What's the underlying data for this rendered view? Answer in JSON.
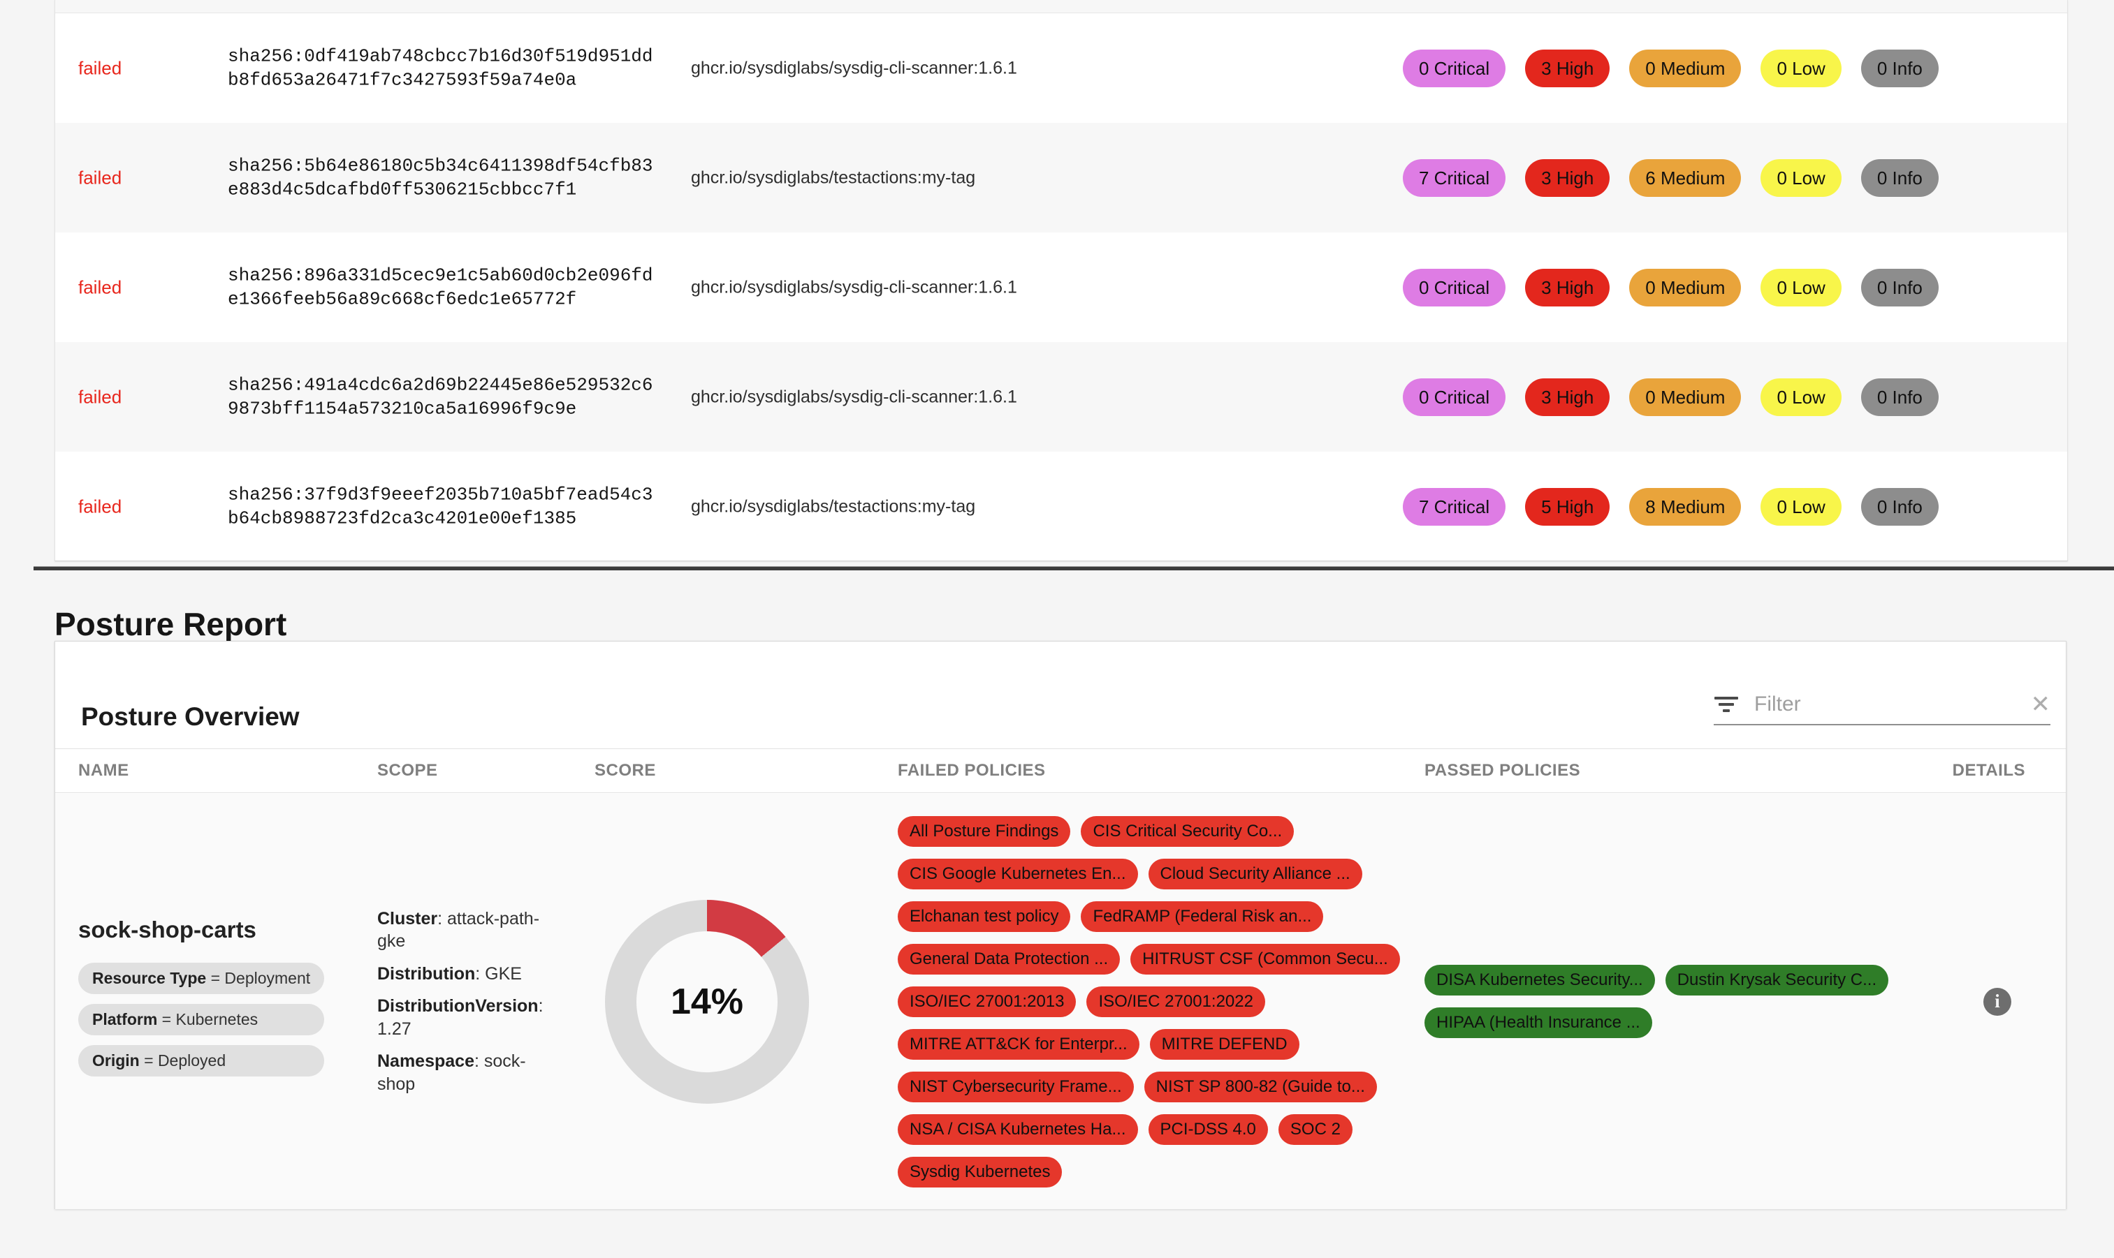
{
  "colors": {
    "critical": "#de7ce4",
    "high": "#e3271d",
    "medium": "#e9a43b",
    "low": "#f8f54a",
    "info": "#8d8d8d",
    "failed_text": "#e8261c",
    "failed_policy": "#e5372b",
    "passed_policy": "#2f7d28",
    "donut_red": "#d23b43",
    "donut_gray": "#dadada"
  },
  "scan_table": {
    "rows": [
      {
        "status": "failed",
        "digest": "sha256:0df419ab748cbcc7b16d30f519d951ddb8fd653a26471f7c3427593f59a74e0a",
        "image": "ghcr.io/sysdiglabs/sysdig-cli-scanner:1.6.1",
        "badges": [
          {
            "text": "0 Critical",
            "severity": "critical"
          },
          {
            "text": "3 High",
            "severity": "high"
          },
          {
            "text": "0 Medium",
            "severity": "medium"
          },
          {
            "text": "0 Low",
            "severity": "low"
          },
          {
            "text": "0 Info",
            "severity": "info"
          }
        ]
      },
      {
        "status": "failed",
        "digest": "sha256:5b64e86180c5b34c6411398df54cfb83e883d4c5dcafbd0ff5306215cbbcc7f1",
        "image": "ghcr.io/sysdiglabs/testactions:my-tag",
        "badges": [
          {
            "text": "7 Critical",
            "severity": "critical"
          },
          {
            "text": "3 High",
            "severity": "high"
          },
          {
            "text": "6 Medium",
            "severity": "medium"
          },
          {
            "text": "0 Low",
            "severity": "low"
          },
          {
            "text": "0 Info",
            "severity": "info"
          }
        ]
      },
      {
        "status": "failed",
        "digest": "sha256:896a331d5cec9e1c5ab60d0cb2e096fde1366feeb56a89c668cf6edc1e65772f",
        "image": "ghcr.io/sysdiglabs/sysdig-cli-scanner:1.6.1",
        "badges": [
          {
            "text": "0 Critical",
            "severity": "critical"
          },
          {
            "text": "3 High",
            "severity": "high"
          },
          {
            "text": "0 Medium",
            "severity": "medium"
          },
          {
            "text": "0 Low",
            "severity": "low"
          },
          {
            "text": "0 Info",
            "severity": "info"
          }
        ]
      },
      {
        "status": "failed",
        "digest": "sha256:491a4cdc6a2d69b22445e86e529532c69873bff1154a573210ca5a16996f9c9e",
        "image": "ghcr.io/sysdiglabs/sysdig-cli-scanner:1.6.1",
        "badges": [
          {
            "text": "0 Critical",
            "severity": "critical"
          },
          {
            "text": "3 High",
            "severity": "high"
          },
          {
            "text": "0 Medium",
            "severity": "medium"
          },
          {
            "text": "0 Low",
            "severity": "low"
          },
          {
            "text": "0 Info",
            "severity": "info"
          }
        ]
      },
      {
        "status": "failed",
        "digest": "sha256:37f9d3f9eeef2035b710a5bf7ead54c3b64cb8988723fd2ca3c4201e00ef1385",
        "image": "ghcr.io/sysdiglabs/testactions:my-tag",
        "badges": [
          {
            "text": "7 Critical",
            "severity": "critical"
          },
          {
            "text": "5 High",
            "severity": "high"
          },
          {
            "text": "8 Medium",
            "severity": "medium"
          },
          {
            "text": "0 Low",
            "severity": "low"
          },
          {
            "text": "0 Info",
            "severity": "info"
          }
        ]
      }
    ]
  },
  "posture": {
    "section_title": "Posture Report",
    "card_title": "Posture Overview",
    "filter": {
      "placeholder": "Filter",
      "value": ""
    },
    "columns": [
      "NAME",
      "SCOPE",
      "SCORE",
      "FAILED POLICIES",
      "PASSED POLICIES",
      "DETAILS"
    ],
    "row": {
      "name": "sock-shop-carts",
      "attributes": [
        {
          "key": "Resource Type",
          "value": "Deployment"
        },
        {
          "key": "Platform",
          "value": "Kubernetes"
        },
        {
          "key": "Origin",
          "value": "Deployed"
        }
      ],
      "scope": [
        {
          "key": "Cluster",
          "value": "attack-path-gke"
        },
        {
          "key": "Distribution",
          "value": "GKE"
        },
        {
          "key": "DistributionVersion",
          "value": "1.27"
        },
        {
          "key": "Namespace",
          "value": "sock-shop"
        }
      ],
      "score_percent": 14,
      "score_label": "14%",
      "failed_policies": [
        "All Posture Findings",
        "CIS Critical Security Co...",
        "CIS Google Kubernetes En...",
        "Cloud Security Alliance ...",
        "Elchanan test policy",
        "FedRAMP (Federal Risk an...",
        "General Data Protection ...",
        "HITRUST CSF (Common Secu...",
        "ISO/IEC 27001:2013",
        "ISO/IEC 27001:2022",
        "MITRE ATT&CK for Enterpr...",
        "MITRE DEFEND",
        "NIST Cybersecurity Frame...",
        "NIST SP 800-82 (Guide to...",
        "NSA / CISA Kubernetes Ha...",
        "PCI-DSS 4.0",
        "SOC 2",
        "Sysdig Kubernetes"
      ],
      "passed_policies": [
        "DISA Kubernetes Security...",
        "Dustin Krysak Security C...",
        "HIPAA (Health Insurance ..."
      ]
    }
  }
}
